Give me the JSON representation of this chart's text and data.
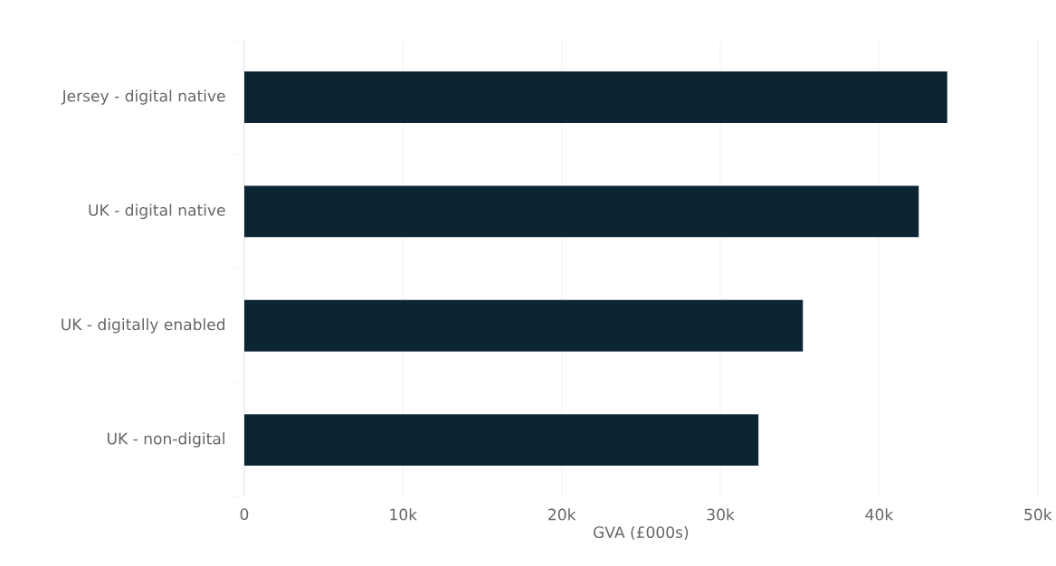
{
  "chart_data": {
    "type": "bar",
    "orientation": "horizontal",
    "categories": [
      "Jersey - digital native",
      "UK - digital native",
      "UK - digitally enabled",
      "UK - non-digital"
    ],
    "values": [
      44300,
      42500,
      35200,
      32400
    ],
    "color": "#0c2533",
    "xlabel": "GVA (£000s)",
    "xlim": [
      0,
      50000
    ],
    "xticks": [
      0,
      {
        "value": 10000,
        "label": "10k"
      },
      {
        "value": 20000,
        "label": "20k"
      },
      {
        "value": 30000,
        "label": "30k"
      },
      {
        "value": 40000,
        "label": "40k"
      },
      {
        "value": 50000,
        "label": "50k"
      }
    ],
    "grid": "x"
  }
}
